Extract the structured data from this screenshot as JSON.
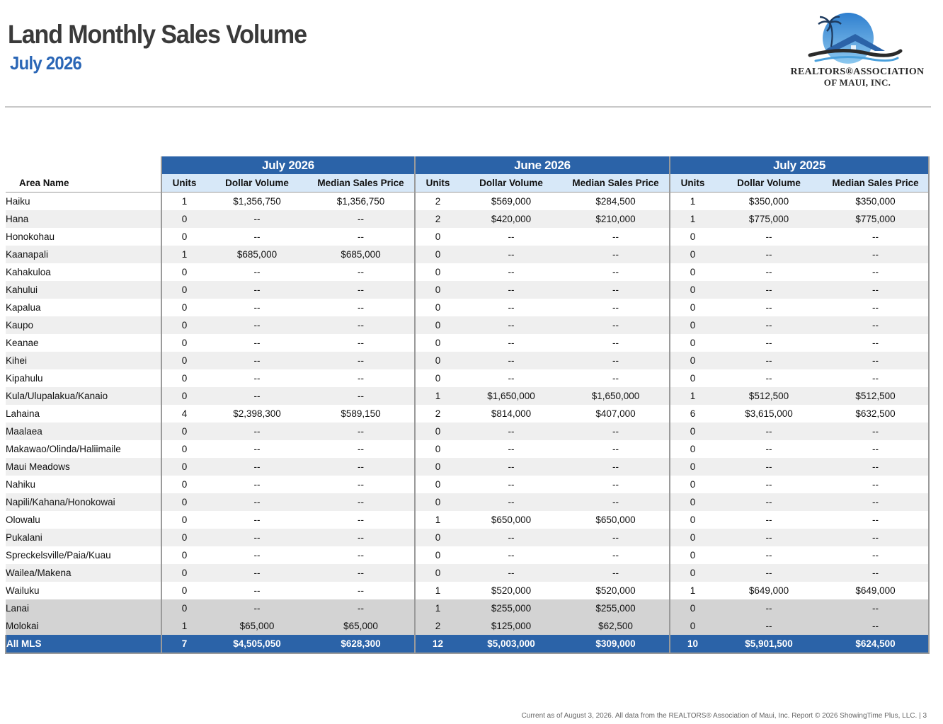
{
  "header": {
    "title": "Land Monthly Sales Volume",
    "subtitle": "July 2026"
  },
  "logo": {
    "line1": "REALTORS®ASSOCIATION",
    "line2": "OF MAUI, INC.",
    "colors": {
      "sky": "#4aa0dc",
      "roof": "#2b63a8",
      "dark": "#2a2a2a"
    }
  },
  "table": {
    "area_header": "Area Name",
    "periods": [
      "July 2026",
      "June 2026",
      "July 2025"
    ],
    "columns": [
      "Units",
      "Dollar Volume",
      "Median Sales Price"
    ],
    "rows": [
      {
        "area": "Haiku",
        "kind": "regular",
        "vals": [
          "1",
          "$1,356,750",
          "$1,356,750",
          "2",
          "$569,000",
          "$284,500",
          "1",
          "$350,000",
          "$350,000"
        ]
      },
      {
        "area": "Hana",
        "kind": "regular",
        "vals": [
          "0",
          "--",
          "--",
          "2",
          "$420,000",
          "$210,000",
          "1",
          "$775,000",
          "$775,000"
        ]
      },
      {
        "area": "Honokohau",
        "kind": "regular",
        "vals": [
          "0",
          "--",
          "--",
          "0",
          "--",
          "--",
          "0",
          "--",
          "--"
        ]
      },
      {
        "area": "Kaanapali",
        "kind": "regular",
        "vals": [
          "1",
          "$685,000",
          "$685,000",
          "0",
          "--",
          "--",
          "0",
          "--",
          "--"
        ]
      },
      {
        "area": "Kahakuloa",
        "kind": "regular",
        "vals": [
          "0",
          "--",
          "--",
          "0",
          "--",
          "--",
          "0",
          "--",
          "--"
        ]
      },
      {
        "area": "Kahului",
        "kind": "regular",
        "vals": [
          "0",
          "--",
          "--",
          "0",
          "--",
          "--",
          "0",
          "--",
          "--"
        ]
      },
      {
        "area": "Kapalua",
        "kind": "regular",
        "vals": [
          "0",
          "--",
          "--",
          "0",
          "--",
          "--",
          "0",
          "--",
          "--"
        ]
      },
      {
        "area": "Kaupo",
        "kind": "regular",
        "vals": [
          "0",
          "--",
          "--",
          "0",
          "--",
          "--",
          "0",
          "--",
          "--"
        ]
      },
      {
        "area": "Keanae",
        "kind": "regular",
        "vals": [
          "0",
          "--",
          "--",
          "0",
          "--",
          "--",
          "0",
          "--",
          "--"
        ]
      },
      {
        "area": "Kihei",
        "kind": "regular",
        "vals": [
          "0",
          "--",
          "--",
          "0",
          "--",
          "--",
          "0",
          "--",
          "--"
        ]
      },
      {
        "area": "Kipahulu",
        "kind": "regular",
        "vals": [
          "0",
          "--",
          "--",
          "0",
          "--",
          "--",
          "0",
          "--",
          "--"
        ]
      },
      {
        "area": "Kula/Ulupalakua/Kanaio",
        "kind": "regular",
        "vals": [
          "0",
          "--",
          "--",
          "1",
          "$1,650,000",
          "$1,650,000",
          "1",
          "$512,500",
          "$512,500"
        ]
      },
      {
        "area": "Lahaina",
        "kind": "regular",
        "vals": [
          "4",
          "$2,398,300",
          "$589,150",
          "2",
          "$814,000",
          "$407,000",
          "6",
          "$3,615,000",
          "$632,500"
        ]
      },
      {
        "area": "Maalaea",
        "kind": "regular",
        "vals": [
          "0",
          "--",
          "--",
          "0",
          "--",
          "--",
          "0",
          "--",
          "--"
        ]
      },
      {
        "area": "Makawao/Olinda/Haliimaile",
        "kind": "regular",
        "vals": [
          "0",
          "--",
          "--",
          "0",
          "--",
          "--",
          "0",
          "--",
          "--"
        ]
      },
      {
        "area": "Maui Meadows",
        "kind": "regular",
        "vals": [
          "0",
          "--",
          "--",
          "0",
          "--",
          "--",
          "0",
          "--",
          "--"
        ]
      },
      {
        "area": "Nahiku",
        "kind": "regular",
        "vals": [
          "0",
          "--",
          "--",
          "0",
          "--",
          "--",
          "0",
          "--",
          "--"
        ]
      },
      {
        "area": "Napili/Kahana/Honokowai",
        "kind": "regular",
        "vals": [
          "0",
          "--",
          "--",
          "0",
          "--",
          "--",
          "0",
          "--",
          "--"
        ]
      },
      {
        "area": "Olowalu",
        "kind": "regular",
        "vals": [
          "0",
          "--",
          "--",
          "1",
          "$650,000",
          "$650,000",
          "0",
          "--",
          "--"
        ]
      },
      {
        "area": "Pukalani",
        "kind": "regular",
        "vals": [
          "0",
          "--",
          "--",
          "0",
          "--",
          "--",
          "0",
          "--",
          "--"
        ]
      },
      {
        "area": "Spreckelsville/Paia/Kuau",
        "kind": "regular",
        "vals": [
          "0",
          "--",
          "--",
          "0",
          "--",
          "--",
          "0",
          "--",
          "--"
        ]
      },
      {
        "area": "Wailea/Makena",
        "kind": "regular",
        "vals": [
          "0",
          "--",
          "--",
          "0",
          "--",
          "--",
          "0",
          "--",
          "--"
        ]
      },
      {
        "area": "Wailuku",
        "kind": "regular",
        "vals": [
          "0",
          "--",
          "--",
          "1",
          "$520,000",
          "$520,000",
          "1",
          "$649,000",
          "$649,000"
        ]
      },
      {
        "area": "Lanai",
        "kind": "island",
        "vals": [
          "0",
          "--",
          "--",
          "1",
          "$255,000",
          "$255,000",
          "0",
          "--",
          "--"
        ]
      },
      {
        "area": "Molokai",
        "kind": "island",
        "vals": [
          "1",
          "$65,000",
          "$65,000",
          "2",
          "$125,000",
          "$62,500",
          "0",
          "--",
          "--"
        ]
      },
      {
        "area": "All MLS",
        "kind": "total",
        "vals": [
          "7",
          "$4,505,050",
          "$628,300",
          "12",
          "$5,003,000",
          "$309,000",
          "10",
          "$5,901,500",
          "$624,500"
        ]
      }
    ]
  },
  "footer": {
    "text": "Current as of August 3, 2026. All data from the REALTORS® Association of Maui, Inc. Report © 2026 ShowingTime Plus, LLC.  |  3"
  }
}
